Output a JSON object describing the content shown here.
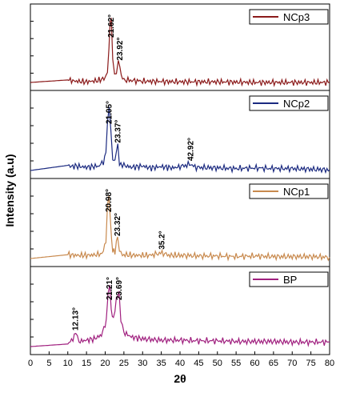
{
  "chart_data": {
    "type": "line",
    "xlabel": "2θ",
    "ylabel": "Intensity (a.u)",
    "xlim": [
      0,
      80
    ],
    "x_ticks": [
      "0",
      "5",
      "10",
      "15",
      "20",
      "25",
      "30",
      "35",
      "40",
      "45",
      "50",
      "55",
      "60",
      "65",
      "70",
      "75",
      "80"
    ],
    "legend_position": "top-right",
    "series": [
      {
        "name": "NCp3",
        "color": "#8b1a1a",
        "points": [
          [
            0,
            0.0
          ],
          [
            10,
            0.04
          ],
          [
            12,
            0.02
          ],
          [
            15,
            0.01
          ],
          [
            18,
            0.03
          ],
          [
            20,
            0.07
          ],
          [
            20.6,
            0.18
          ],
          [
            21.0,
            0.55
          ],
          [
            21.3,
            0.98
          ],
          [
            21.62,
            1.0
          ],
          [
            22.0,
            0.4
          ],
          [
            22.5,
            0.12
          ],
          [
            23.0,
            0.18
          ],
          [
            23.5,
            0.32
          ],
          [
            23.92,
            0.3
          ],
          [
            24.3,
            0.1
          ],
          [
            25,
            0.04
          ],
          [
            30,
            0.02
          ],
          [
            40,
            0.01
          ],
          [
            50,
            0.01
          ],
          [
            60,
            0.0
          ],
          [
            70,
            0.0
          ],
          [
            80,
            0.0
          ]
        ],
        "peak_labels": [
          "21.62°",
          "23.92°"
        ],
        "peak_x": [
          21.62,
          23.92
        ]
      },
      {
        "name": "NCp2",
        "color": "#1b2a80",
        "points": [
          [
            0,
            0.0
          ],
          [
            10,
            0.08
          ],
          [
            11,
            0.06
          ],
          [
            12,
            0.07
          ],
          [
            15,
            0.05
          ],
          [
            18,
            0.07
          ],
          [
            19.5,
            0.12
          ],
          [
            20.2,
            0.3
          ],
          [
            20.6,
            0.7
          ],
          [
            21.05,
            1.0
          ],
          [
            21.5,
            0.6
          ],
          [
            22.0,
            0.18
          ],
          [
            22.6,
            0.14
          ],
          [
            23.0,
            0.3
          ],
          [
            23.37,
            0.38
          ],
          [
            23.8,
            0.12
          ],
          [
            25,
            0.08
          ],
          [
            27,
            0.05
          ],
          [
            30,
            0.07
          ],
          [
            32,
            0.04
          ],
          [
            35,
            0.06
          ],
          [
            38,
            0.04
          ],
          [
            40,
            0.06
          ],
          [
            42.92,
            0.1
          ],
          [
            44,
            0.05
          ],
          [
            50,
            0.04
          ],
          [
            55,
            0.03
          ],
          [
            60,
            0.04
          ],
          [
            65,
            0.03
          ],
          [
            70,
            0.03
          ],
          [
            75,
            0.02
          ],
          [
            80,
            0.01
          ]
        ],
        "peak_labels": [
          "21.05°",
          "23.37°",
          "42.92°"
        ],
        "peak_x": [
          21.05,
          23.37,
          42.92
        ]
      },
      {
        "name": "NCp1",
        "color": "#c8894d",
        "points": [
          [
            0,
            0.0
          ],
          [
            10,
            0.06
          ],
          [
            12,
            0.05
          ],
          [
            15,
            0.05
          ],
          [
            18,
            0.06
          ],
          [
            19.5,
            0.1
          ],
          [
            20.2,
            0.3
          ],
          [
            20.6,
            0.8
          ],
          [
            20.98,
            1.0
          ],
          [
            21.4,
            0.55
          ],
          [
            22.0,
            0.12
          ],
          [
            22.6,
            0.1
          ],
          [
            23.0,
            0.28
          ],
          [
            23.32,
            0.3
          ],
          [
            23.8,
            0.1
          ],
          [
            25,
            0.06
          ],
          [
            28,
            0.05
          ],
          [
            30,
            0.05
          ],
          [
            32,
            0.05
          ],
          [
            35.2,
            0.09
          ],
          [
            37,
            0.05
          ],
          [
            40,
            0.05
          ],
          [
            45,
            0.04
          ],
          [
            50,
            0.04
          ],
          [
            55,
            0.03
          ],
          [
            60,
            0.04
          ],
          [
            65,
            0.03
          ],
          [
            70,
            0.03
          ],
          [
            75,
            0.03
          ],
          [
            80,
            0.02
          ]
        ],
        "peak_labels": [
          "20.98°",
          "23.32°",
          "35.2°"
        ],
        "peak_x": [
          20.98,
          23.32,
          35.2
        ]
      },
      {
        "name": "BP",
        "color": "#a0207f",
        "points": [
          [
            0,
            0.0
          ],
          [
            10,
            0.04
          ],
          [
            11,
            0.1
          ],
          [
            12.13,
            0.2
          ],
          [
            13,
            0.08
          ],
          [
            15,
            0.1
          ],
          [
            17,
            0.12
          ],
          [
            19,
            0.18
          ],
          [
            20.3,
            0.4
          ],
          [
            20.8,
            0.85
          ],
          [
            21.21,
            0.92
          ],
          [
            21.6,
            0.6
          ],
          [
            22.2,
            0.4
          ],
          [
            23.0,
            0.75
          ],
          [
            23.69,
            0.85
          ],
          [
            24.2,
            0.4
          ],
          [
            25,
            0.22
          ],
          [
            27,
            0.15
          ],
          [
            30,
            0.12
          ],
          [
            35,
            0.1
          ],
          [
            40,
            0.1
          ],
          [
            45,
            0.09
          ],
          [
            50,
            0.09
          ],
          [
            55,
            0.08
          ],
          [
            60,
            0.08
          ],
          [
            65,
            0.08
          ],
          [
            70,
            0.07
          ],
          [
            75,
            0.07
          ],
          [
            80,
            0.07
          ]
        ],
        "peak_labels": [
          "12.13°",
          "21.21°",
          "23.69°"
        ],
        "peak_x": [
          12.13,
          21.21,
          23.69
        ]
      }
    ]
  }
}
